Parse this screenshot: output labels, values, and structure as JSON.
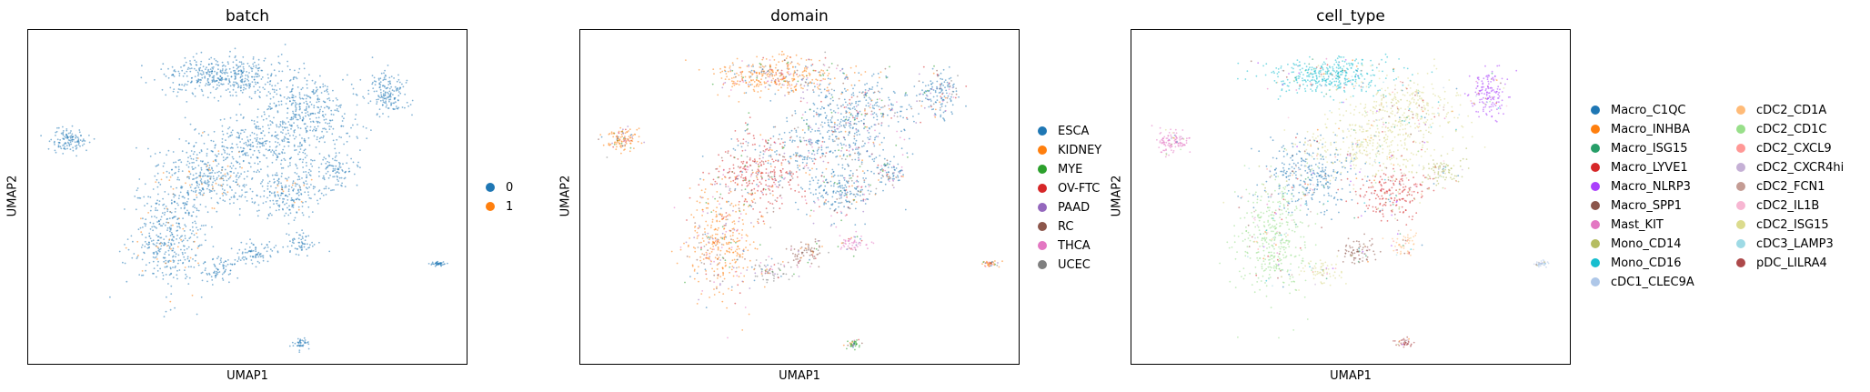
{
  "chart_data": [
    {
      "type": "scatter",
      "title": "batch",
      "xlabel": "UMAP1",
      "ylabel": "UMAP2",
      "grid": false,
      "legend_position": "right",
      "series": [
        {
          "name": "0",
          "color": "#1f77b4"
        },
        {
          "name": "1",
          "color": "#ff7f0e"
        }
      ],
      "x": [],
      "y": []
    },
    {
      "type": "scatter",
      "title": "domain",
      "xlabel": "UMAP1",
      "ylabel": "UMAP2",
      "grid": false,
      "legend_position": "right",
      "series": [
        {
          "name": "ESCA",
          "color": "#1f77b4"
        },
        {
          "name": "KIDNEY",
          "color": "#ff7f0e"
        },
        {
          "name": "MYE",
          "color": "#2ca02c"
        },
        {
          "name": "OV-FTC",
          "color": "#d62728"
        },
        {
          "name": "PAAD",
          "color": "#9467bd"
        },
        {
          "name": "RC",
          "color": "#8c564b"
        },
        {
          "name": "THCA",
          "color": "#e377c2"
        },
        {
          "name": "UCEC",
          "color": "#7f7f7f"
        }
      ],
      "x": [],
      "y": []
    },
    {
      "type": "scatter",
      "title": "cell_type",
      "xlabel": "UMAP1",
      "ylabel": "UMAP2",
      "grid": false,
      "legend_position": "right",
      "series": [
        {
          "name": "Macro_C1QC",
          "color": "#1f77b4"
        },
        {
          "name": "Macro_INHBA",
          "color": "#ff7f0e"
        },
        {
          "name": "Macro_ISG15",
          "color": "#279e68"
        },
        {
          "name": "Macro_LYVE1",
          "color": "#d62728"
        },
        {
          "name": "Macro_NLRP3",
          "color": "#aa40fc"
        },
        {
          "name": "Macro_SPP1",
          "color": "#8c564b"
        },
        {
          "name": "Mast_KIT",
          "color": "#e377c2"
        },
        {
          "name": "Mono_CD14",
          "color": "#b5bd61"
        },
        {
          "name": "Mono_CD16",
          "color": "#17becf"
        },
        {
          "name": "cDC1_CLEC9A",
          "color": "#aec7e8"
        },
        {
          "name": "cDC2_CD1A",
          "color": "#ffbb78"
        },
        {
          "name": "cDC2_CD1C",
          "color": "#98df8a"
        },
        {
          "name": "cDC2_CXCL9",
          "color": "#ff9896"
        },
        {
          "name": "cDC2_CXCR4hi",
          "color": "#c5b0d5"
        },
        {
          "name": "cDC2_FCN1",
          "color": "#c49c94"
        },
        {
          "name": "cDC2_IL1B",
          "color": "#f7b6d2"
        },
        {
          "name": "cDC2_ISG15",
          "color": "#dbdb8d"
        },
        {
          "name": "cDC3_LAMP3",
          "color": "#9edae5"
        },
        {
          "name": "pDC_LILRA4",
          "color": "#ad494a"
        }
      ],
      "x": [],
      "y": []
    }
  ]
}
